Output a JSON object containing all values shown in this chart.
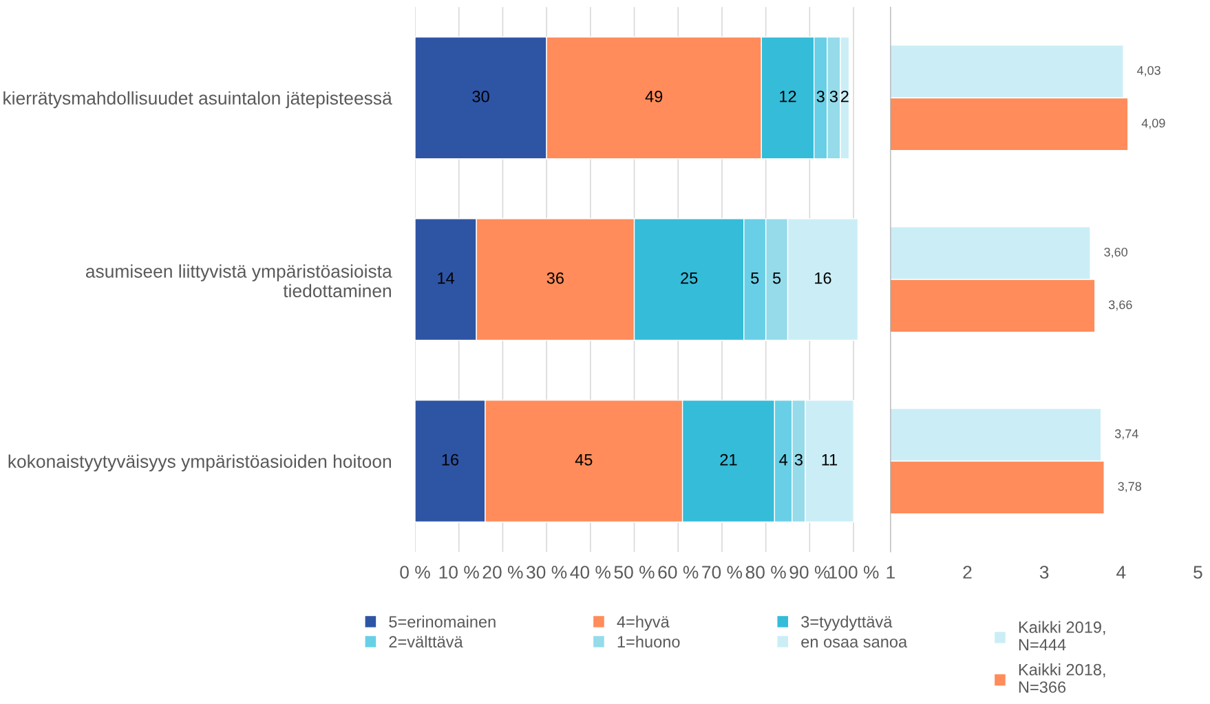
{
  "chart_data": [
    {
      "type": "bar",
      "orientation": "horizontal",
      "stacked": true,
      "data_labels": true,
      "grid": "x",
      "legend": "bottom",
      "categories": [
        "kierrätysmahdollisuudet asuintalon jätepisteessä",
        "asumiseen liittyvistä ympäristöasioista tiedottaminen",
        "kokonaistyytyväisyys ympäristöasioiden hoitoon"
      ],
      "series": [
        {
          "name": "5=erinomainen",
          "color": "#2e54a4",
          "values": [
            30,
            14,
            16
          ]
        },
        {
          "name": "4=hyvä",
          "color": "#ff8c5a",
          "values": [
            49,
            36,
            45
          ]
        },
        {
          "name": "3=tyydyttävä",
          "color": "#35bcd9",
          "values": [
            12,
            25,
            21
          ]
        },
        {
          "name": "2=välttävä",
          "color": "#68cfe6",
          "values": [
            3,
            5,
            4
          ]
        },
        {
          "name": "1=huono",
          "color": "#95dbea",
          "values": [
            3,
            5,
            3
          ]
        },
        {
          "name": "en osaa sanoa",
          "color": "#cbeef6",
          "values": [
            2,
            16,
            11
          ]
        }
      ],
      "xlim": [
        0,
        101
      ],
      "xticks": [
        {
          "value": 0,
          "label": "0 %"
        },
        {
          "value": 10,
          "label": "10 %"
        },
        {
          "value": 20,
          "label": "20 %"
        },
        {
          "value": 30,
          "label": "30 %"
        },
        {
          "value": 40,
          "label": "40 %"
        },
        {
          "value": 50,
          "label": "50 %"
        },
        {
          "value": 60,
          "label": "60 %"
        },
        {
          "value": 70,
          "label": "70 %"
        },
        {
          "value": 80,
          "label": "80 %"
        },
        {
          "value": 90,
          "label": "90 %"
        },
        {
          "value": 100,
          "label": "100 %"
        }
      ]
    },
    {
      "type": "bar",
      "orientation": "horizontal",
      "tick_labels": "x",
      "legend": "bottom",
      "categories": [
        null,
        null,
        null
      ],
      "series": [
        {
          "name": "Kaikki 2019,\nN=444",
          "color": "#cbeef6",
          "values": [
            4.03,
            3.6,
            3.74
          ],
          "value_labels": [
            "4,03",
            "3,60",
            "3,74"
          ]
        },
        {
          "name": "Kaikki 2018,\nN=366",
          "color": "#ff8c5a",
          "values": [
            4.09,
            3.66,
            3.78
          ],
          "value_labels": [
            "4,09",
            "3,66",
            "3,78"
          ]
        }
      ],
      "xlim": [
        1,
        5
      ],
      "xticks": [
        1,
        2,
        3,
        4,
        5
      ]
    }
  ]
}
